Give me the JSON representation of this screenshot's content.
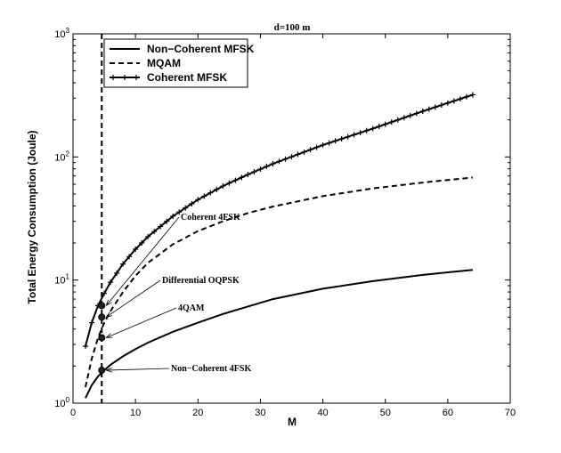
{
  "chart_data": {
    "type": "line",
    "title": "d=100 m",
    "xlabel": "M",
    "ylabel": "Total Energy Consumption (Joule)",
    "xlim": [
      0,
      70
    ],
    "ylim": [
      1,
      1000
    ],
    "yscale": "log",
    "grid": false,
    "x_ticks": [
      "0",
      "10",
      "20",
      "30",
      "40",
      "50",
      "60",
      "70"
    ],
    "y_ticks": [
      {
        "base": "10",
        "exp": "0"
      },
      {
        "base": "10",
        "exp": "1"
      },
      {
        "base": "10",
        "exp": "2"
      },
      {
        "base": "10",
        "exp": "3"
      }
    ],
    "legend_position": "top-left",
    "vertical_marker_x": 4.6,
    "series": [
      {
        "name": "Non−Coherent MFSK",
        "style": "solid",
        "x": [
          2,
          3,
          4,
          5,
          6,
          8,
          10,
          12,
          16,
          20,
          24,
          28,
          32,
          40,
          48,
          56,
          64
        ],
        "y": [
          1.1,
          1.4,
          1.65,
          1.85,
          2.05,
          2.4,
          2.75,
          3.1,
          3.8,
          4.5,
          5.3,
          6.1,
          7.0,
          8.5,
          9.8,
          11.0,
          12.1
        ]
      },
      {
        "name": "MQAM",
        "style": "dashed",
        "x": [
          2,
          3,
          4,
          5,
          6,
          8,
          10,
          12,
          16,
          20,
          24,
          28,
          32,
          40,
          48,
          56,
          64
        ],
        "y": [
          1.35,
          2.3,
          3.4,
          4.5,
          5.6,
          8.0,
          10.8,
          13.8,
          19.5,
          25.0,
          30.0,
          35.0,
          39.5,
          48.0,
          55.5,
          62.0,
          68.0
        ]
      },
      {
        "name": "Coherent MFSK",
        "style": "solid-plus",
        "x": [
          2,
          3,
          4,
          5,
          6,
          8,
          10,
          12,
          16,
          20,
          24,
          28,
          32,
          40,
          48,
          56,
          64
        ],
        "y": [
          2.9,
          4.5,
          6.2,
          7.8,
          9.6,
          13.5,
          17.8,
          22.5,
          33.0,
          45.0,
          58.0,
          72.0,
          88.0,
          125.0,
          170.0,
          235.0,
          320.0
        ]
      }
    ],
    "annotations": [
      {
        "text": "Coherent 4FSK",
        "x": 4,
        "y": 6.2
      },
      {
        "text": "Differential OQPSK",
        "x": 4,
        "y": 5.0
      },
      {
        "text": "4QAM",
        "x": 4,
        "y": 3.4
      },
      {
        "text": "Non−Coherent 4FSK",
        "x": 4,
        "y": 1.85
      }
    ]
  }
}
